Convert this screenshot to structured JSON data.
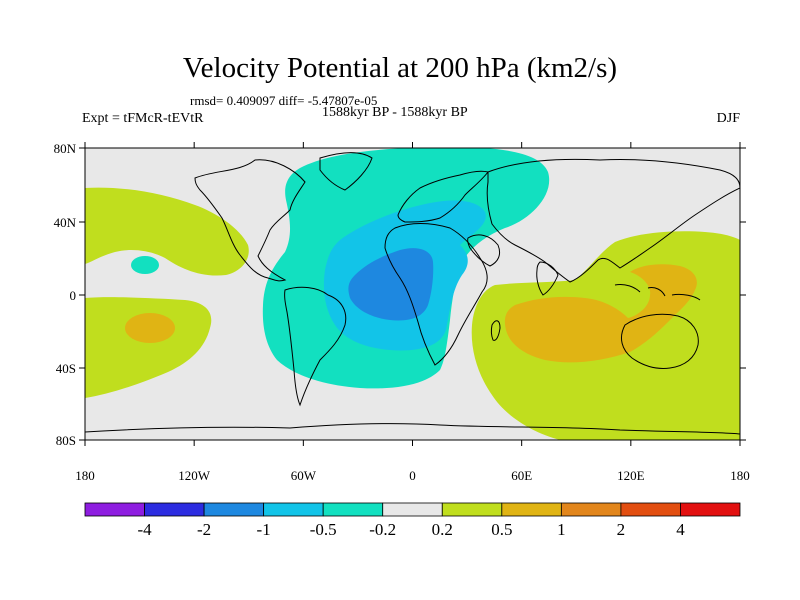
{
  "title": "Velocity Potential at 200 hPa (km2/s)",
  "stats": "rmsd= 0.409097 diff= -5.47807e-05",
  "experiment": "Expt = tFMcR-tEVtR",
  "period": "1588kyr BP - 1588kyr BP",
  "season": "DJF",
  "map": {
    "lat_ticks": [
      "80N",
      "40N",
      "0",
      "40S",
      "80S"
    ],
    "lon_ticks": [
      "180",
      "120W",
      "60W",
      "0",
      "60E",
      "120E",
      "180"
    ],
    "background": "#e8e8e8"
  },
  "colorbar": {
    "colors": [
      "#8e1de0",
      "#2c2ce0",
      "#1e88e0",
      "#12c4e8",
      "#12e0c0",
      "#e8e8e8",
      "#c0de1e",
      "#e0b414",
      "#e2861c",
      "#e24e10",
      "#e21010"
    ],
    "labels": [
      "-4",
      "-2",
      "-1",
      "-0.5",
      "-0.2",
      "0.2",
      "0.5",
      "1",
      "2",
      "4"
    ]
  },
  "regions": [
    {
      "name": "pacific-west-positive",
      "level": "0.5"
    },
    {
      "name": "pacific-central-positive-core",
      "level": "1"
    },
    {
      "name": "atlantic-negative",
      "level": "-0.2"
    },
    {
      "name": "atlantic-negative-core",
      "level": "-0.5"
    },
    {
      "name": "africa-negative-center",
      "level": "-1"
    },
    {
      "name": "indian-ocean-positive",
      "level": "0.5"
    },
    {
      "name": "indian-ocean-positive-core",
      "level": "1"
    }
  ]
}
